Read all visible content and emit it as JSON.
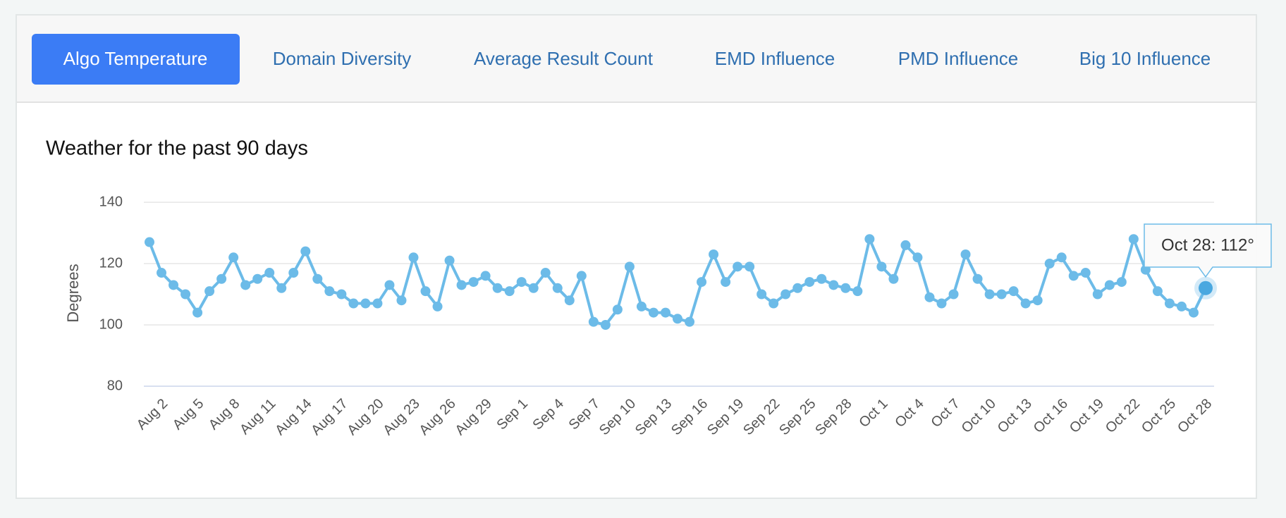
{
  "tabs": [
    "Algo Temperature",
    "Domain Diversity",
    "Average Result Count",
    "EMD Influence",
    "PMD Influence",
    "Big 10 Influence"
  ],
  "active_tab": 0,
  "chart_data": {
    "type": "line",
    "title": "Weather for the past 90 days",
    "y_label": "Degrees",
    "categories": [
      null,
      "Aug 2",
      null,
      null,
      "Aug 5",
      null,
      null,
      "Aug 8",
      null,
      null,
      "Aug 11",
      null,
      null,
      "Aug 14",
      null,
      null,
      "Aug 17",
      null,
      null,
      "Aug 20",
      null,
      null,
      "Aug 23",
      null,
      null,
      "Aug 26",
      null,
      null,
      "Aug 29",
      null,
      null,
      "Sep 1",
      null,
      null,
      "Sep 4",
      null,
      null,
      "Sep 7",
      null,
      null,
      "Sep 10",
      null,
      null,
      "Sep 13",
      null,
      null,
      "Sep 16",
      null,
      null,
      "Sep 19",
      null,
      null,
      "Sep 22",
      null,
      null,
      "Sep 25",
      null,
      null,
      "Sep 28",
      null,
      null,
      "Oct 1",
      null,
      null,
      "Oct 4",
      null,
      null,
      "Oct 7",
      null,
      null,
      "Oct 10",
      null,
      null,
      "Oct 13",
      null,
      null,
      "Oct 16",
      null,
      null,
      "Oct 19",
      null,
      null,
      "Oct 22",
      null,
      null,
      "Oct 25",
      null,
      null,
      "Oct 28"
    ],
    "values": [
      127,
      117,
      113,
      110,
      104,
      111,
      115,
      122,
      113,
      115,
      117,
      112,
      117,
      124,
      115,
      111,
      110,
      107,
      107,
      107,
      113,
      108,
      122,
      111,
      106,
      121,
      113,
      114,
      116,
      112,
      111,
      114,
      112,
      117,
      112,
      108,
      116,
      101,
      100,
      105,
      119,
      106,
      104,
      104,
      102,
      101,
      114,
      123,
      114,
      119,
      119,
      110,
      107,
      110,
      112,
      114,
      115,
      113,
      112,
      111,
      128,
      119,
      115,
      126,
      122,
      109,
      107,
      110,
      123,
      115,
      110,
      110,
      111,
      107,
      108,
      120,
      122,
      116,
      117,
      110,
      113,
      114,
      128,
      118,
      111,
      107,
      106,
      104,
      112
    ],
    "color": "#6cbbe8",
    "ylim": [
      80,
      140
    ],
    "yticks": [
      80,
      100,
      120,
      140
    ],
    "grid": true,
    "tooltip": "Oct 28: 112°",
    "tooltip_index": 88
  }
}
